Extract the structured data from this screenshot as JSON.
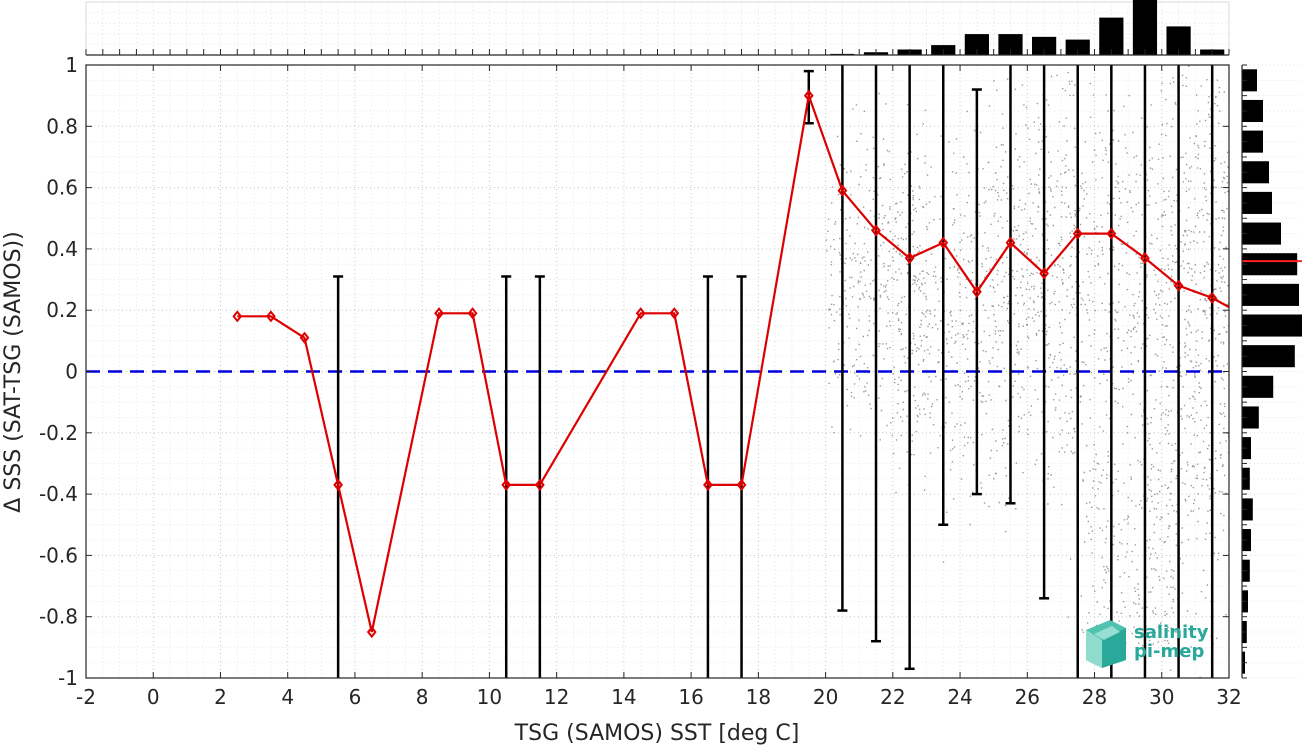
{
  "chart_data": {
    "type": "line",
    "title": "",
    "xlabel": "TSG (SAMOS) SST [deg C]",
    "ylabel": "Δ SSS (SAT-TSG (SAMOS))",
    "xlim": [
      -2,
      32
    ],
    "ylim": [
      -1,
      1
    ],
    "xticks": [
      "-2",
      "0",
      "2",
      "4",
      "6",
      "8",
      "10",
      "12",
      "14",
      "16",
      "18",
      "20",
      "22",
      "24",
      "26",
      "28",
      "30",
      "32"
    ],
    "yticks": [
      "-1",
      "-0.8",
      "-0.6",
      "-0.4",
      "-0.2",
      "0",
      "0.2",
      "0.4",
      "0.6",
      "0.8",
      "1"
    ],
    "grid": "dotted",
    "series": [
      {
        "type": "line",
        "color": "#dd0000",
        "marker": "diamond",
        "x": [
          2.5,
          3.5,
          4.5,
          5.5,
          6.5,
          8.5,
          9.5,
          10.5,
          11.5,
          14.5,
          15.5,
          16.5,
          17.5,
          19.5,
          20.5,
          21.5,
          22.5,
          23.5,
          24.5,
          25.5,
          26.5,
          27.5,
          28.5,
          29.5,
          30.5,
          31.5,
          32.0
        ],
        "y": [
          0.18,
          0.18,
          0.11,
          -0.37,
          -0.85,
          0.19,
          0.19,
          -0.37,
          -0.37,
          0.19,
          0.19,
          -0.37,
          -0.37,
          0.9,
          0.59,
          0.46,
          0.37,
          0.42,
          0.26,
          0.42,
          0.32,
          0.45,
          0.45,
          0.37,
          0.28,
          0.24,
          0.21
        ]
      }
    ],
    "error_bars": {
      "color": "#000000",
      "x": [
        5.5,
        10.5,
        11.5,
        16.5,
        17.5,
        19.5,
        20.5,
        21.5,
        22.5,
        23.5,
        24.5,
        25.5,
        26.5,
        27.5,
        28.5,
        29.5,
        30.5,
        31.5
      ],
      "low": [
        -1.0,
        -1.0,
        -1.0,
        -1.0,
        -1.0,
        0.81,
        -0.78,
        -0.88,
        -0.97,
        -0.5,
        -0.4,
        -0.43,
        -0.74,
        -1.0,
        -1.0,
        -1.0,
        -1.0,
        -1.0
      ],
      "high": [
        0.31,
        0.31,
        0.31,
        0.31,
        0.31,
        0.98,
        1.0,
        1.0,
        1.0,
        1.0,
        0.92,
        1.0,
        1.0,
        1.0,
        1.0,
        1.0,
        1.0,
        1.0
      ]
    },
    "reference_line": {
      "y": 0,
      "color": "#0000dd",
      "style": "dashed"
    },
    "scatter_cloud": {
      "color": "#888888",
      "x_range": [
        20,
        32
      ],
      "y_center": 0.25
    },
    "top_histogram": {
      "x": [
        20.5,
        21.5,
        22.5,
        23.5,
        24.5,
        25.5,
        26.5,
        27.5,
        28.5,
        29.5,
        30.5,
        31.5
      ],
      "counts": [
        0.02,
        0.05,
        0.1,
        0.18,
        0.38,
        0.38,
        0.33,
        0.28,
        0.68,
        1.0,
        0.52,
        0.1
      ]
    },
    "right_histogram": {
      "y": [
        0.95,
        0.85,
        0.75,
        0.65,
        0.55,
        0.45,
        0.35,
        0.25,
        0.15,
        0.05,
        -0.05,
        -0.15,
        -0.25,
        -0.35,
        -0.45,
        -0.55,
        -0.65,
        -0.75,
        -0.85,
        -0.95
      ],
      "counts": [
        0.25,
        0.35,
        0.35,
        0.45,
        0.5,
        0.65,
        0.92,
        0.95,
        1.0,
        0.88,
        0.52,
        0.28,
        0.15,
        0.13,
        0.18,
        0.15,
        0.13,
        0.1,
        0.08,
        0.05
      ],
      "mean_line_y": 0.36
    }
  },
  "logo": {
    "line1": "salinity",
    "line2": "pi-mep"
  }
}
